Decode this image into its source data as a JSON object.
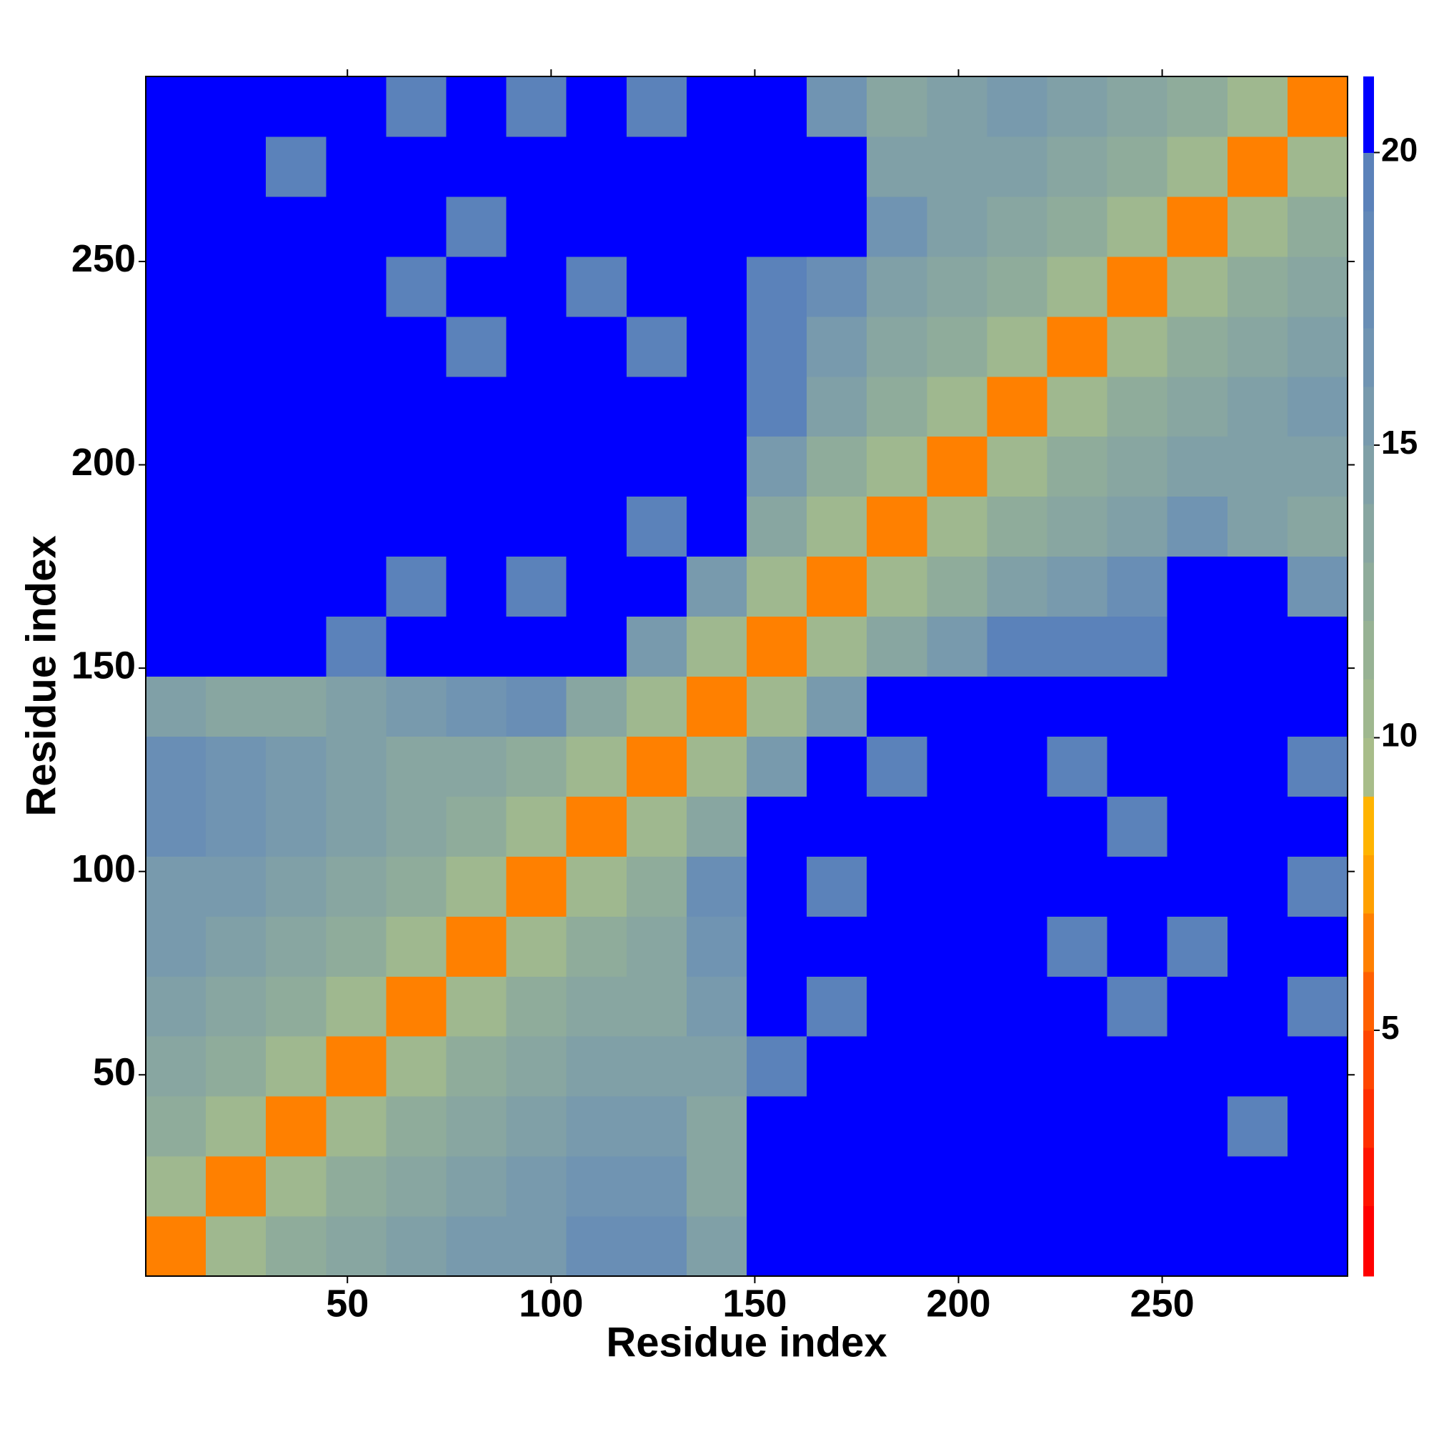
{
  "chart_data": {
    "type": "heatmap",
    "xlabel": "Residue index",
    "ylabel": "Residue index",
    "xlim": [
      0.5,
      295.5
    ],
    "ylim": [
      0.5,
      295.5
    ],
    "xticks": [
      50,
      100,
      150,
      200,
      250
    ],
    "yticks": [
      50,
      100,
      150,
      200,
      250
    ],
    "values": [
      [
        7,
        11,
        13,
        14,
        15,
        16,
        16,
        18,
        18,
        15,
        21,
        21,
        21,
        21,
        21,
        21,
        21,
        21,
        21,
        21
      ],
      [
        11,
        7,
        11,
        13,
        14,
        15,
        16,
        17,
        17,
        14,
        21,
        21,
        21,
        21,
        21,
        21,
        21,
        21,
        21,
        21
      ],
      [
        13,
        11,
        7,
        11,
        13,
        14,
        15,
        16,
        16,
        14,
        21,
        21,
        21,
        21,
        21,
        21,
        21,
        21,
        20,
        21
      ],
      [
        14,
        13,
        11,
        7,
        11,
        13,
        14,
        15,
        15,
        15,
        20,
        21,
        21,
        21,
        21,
        21,
        21,
        21,
        21,
        21
      ],
      [
        15,
        14,
        13,
        11,
        7,
        11,
        13,
        14,
        14,
        16,
        21,
        20,
        21,
        21,
        21,
        21,
        20,
        21,
        21,
        20
      ],
      [
        16,
        15,
        14,
        13,
        11,
        7,
        11,
        13,
        14,
        17,
        21,
        21,
        21,
        21,
        21,
        20,
        21,
        20,
        21,
        21
      ],
      [
        16,
        16,
        15,
        14,
        13,
        11,
        7,
        11,
        13,
        18,
        21,
        20,
        21,
        21,
        21,
        21,
        21,
        21,
        21,
        20
      ],
      [
        18,
        17,
        16,
        15,
        14,
        13,
        11,
        7,
        11,
        14,
        21,
        21,
        21,
        21,
        21,
        21,
        20,
        21,
        21,
        21
      ],
      [
        18,
        17,
        16,
        15,
        14,
        14,
        13,
        11,
        7,
        11,
        16,
        21,
        20,
        21,
        21,
        20,
        21,
        21,
        21,
        20
      ],
      [
        15,
        14,
        14,
        15,
        16,
        17,
        18,
        14,
        11,
        7,
        11,
        16,
        21,
        21,
        21,
        21,
        21,
        21,
        21,
        21
      ],
      [
        21,
        21,
        21,
        20,
        21,
        21,
        21,
        21,
        16,
        11,
        7,
        11,
        14,
        16,
        20,
        20,
        20,
        21,
        21,
        21
      ],
      [
        21,
        21,
        21,
        21,
        20,
        21,
        20,
        21,
        21,
        16,
        11,
        7,
        11,
        13,
        15,
        16,
        18,
        21,
        21,
        17
      ],
      [
        21,
        21,
        21,
        21,
        21,
        21,
        21,
        21,
        20,
        21,
        14,
        11,
        7,
        11,
        13,
        14,
        15,
        17,
        15,
        14
      ],
      [
        21,
        21,
        21,
        21,
        21,
        21,
        21,
        21,
        21,
        21,
        16,
        13,
        11,
        7,
        11,
        13,
        14,
        15,
        15,
        15
      ],
      [
        21,
        21,
        21,
        21,
        21,
        21,
        21,
        21,
        21,
        21,
        20,
        15,
        13,
        11,
        7,
        11,
        13,
        14,
        15,
        16
      ],
      [
        21,
        21,
        21,
        21,
        21,
        20,
        21,
        21,
        20,
        21,
        20,
        16,
        14,
        13,
        11,
        7,
        11,
        13,
        14,
        15
      ],
      [
        21,
        21,
        21,
        21,
        20,
        21,
        21,
        20,
        21,
        21,
        20,
        18,
        15,
        14,
        13,
        11,
        7,
        11,
        13,
        14
      ],
      [
        21,
        21,
        21,
        21,
        21,
        20,
        21,
        21,
        21,
        21,
        21,
        21,
        17,
        15,
        14,
        13,
        11,
        7,
        11,
        13
      ],
      [
        21,
        21,
        20,
        21,
        21,
        21,
        21,
        21,
        21,
        21,
        21,
        21,
        15,
        15,
        15,
        14,
        13,
        11,
        7,
        11
      ],
      [
        21,
        21,
        21,
        21,
        20,
        21,
        20,
        21,
        20,
        21,
        21,
        17,
        14,
        15,
        16,
        15,
        14,
        13,
        11,
        7
      ]
    ],
    "colorbar": {
      "clim": [
        0.8,
        21.3
      ],
      "ticks": [
        5,
        10,
        15,
        20
      ],
      "boundaries": [
        0.8,
        2,
        3,
        4,
        5,
        6,
        7,
        8,
        9,
        10,
        11,
        12,
        13,
        14,
        15,
        16,
        17,
        18,
        19,
        20,
        21.3
      ],
      "colors": [
        "#ff0000",
        "#ff1400",
        "#ff2e00",
        "#ff4600",
        "#ff6000",
        "#ff8000",
        "#ffa000",
        "#ffb400",
        "#a8bd8a",
        "#9fb88f",
        "#97b294",
        "#8fac9b",
        "#88a6a1",
        "#80a0a7",
        "#789aad",
        "#7094b2",
        "#698eb5",
        "#6288b8",
        "#5b82ba",
        "#0000ff"
      ]
    }
  }
}
